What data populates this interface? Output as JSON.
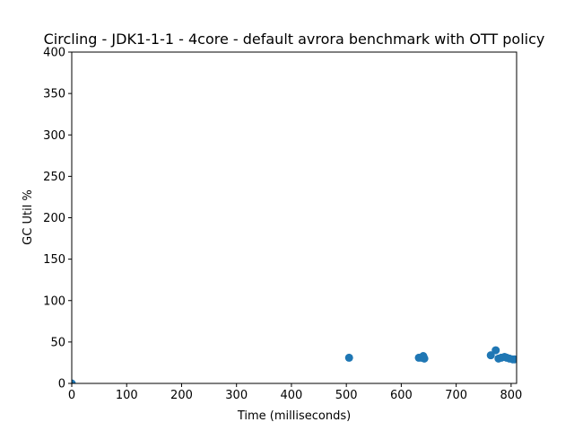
{
  "chart_data": {
    "type": "scatter",
    "title": "Circling - JDK1-1-1 - 4core -  default avrora benchmark with OTT policy",
    "xlabel": "Time (milliseconds)",
    "ylabel": "GC Util %",
    "xlim": [
      0,
      810
    ],
    "ylim": [
      0,
      400
    ],
    "xticks": [
      0,
      100,
      200,
      300,
      400,
      500,
      600,
      700,
      800
    ],
    "yticks": [
      0,
      50,
      100,
      150,
      200,
      250,
      300,
      350,
      400
    ],
    "grid": false,
    "marker_color": "#1f77b4",
    "series": [
      {
        "points": [
          {
            "x": 0,
            "y": 0
          },
          {
            "x": 505,
            "y": 31
          },
          {
            "x": 632,
            "y": 31
          },
          {
            "x": 637,
            "y": 31
          },
          {
            "x": 640,
            "y": 33
          },
          {
            "x": 642,
            "y": 30
          },
          {
            "x": 763,
            "y": 34
          },
          {
            "x": 772,
            "y": 40
          },
          {
            "x": 777,
            "y": 30
          },
          {
            "x": 782,
            "y": 31
          },
          {
            "x": 788,
            "y": 32
          },
          {
            "x": 792,
            "y": 31
          },
          {
            "x": 797,
            "y": 30
          },
          {
            "x": 803,
            "y": 29
          },
          {
            "x": 806,
            "y": 29
          }
        ]
      }
    ]
  }
}
